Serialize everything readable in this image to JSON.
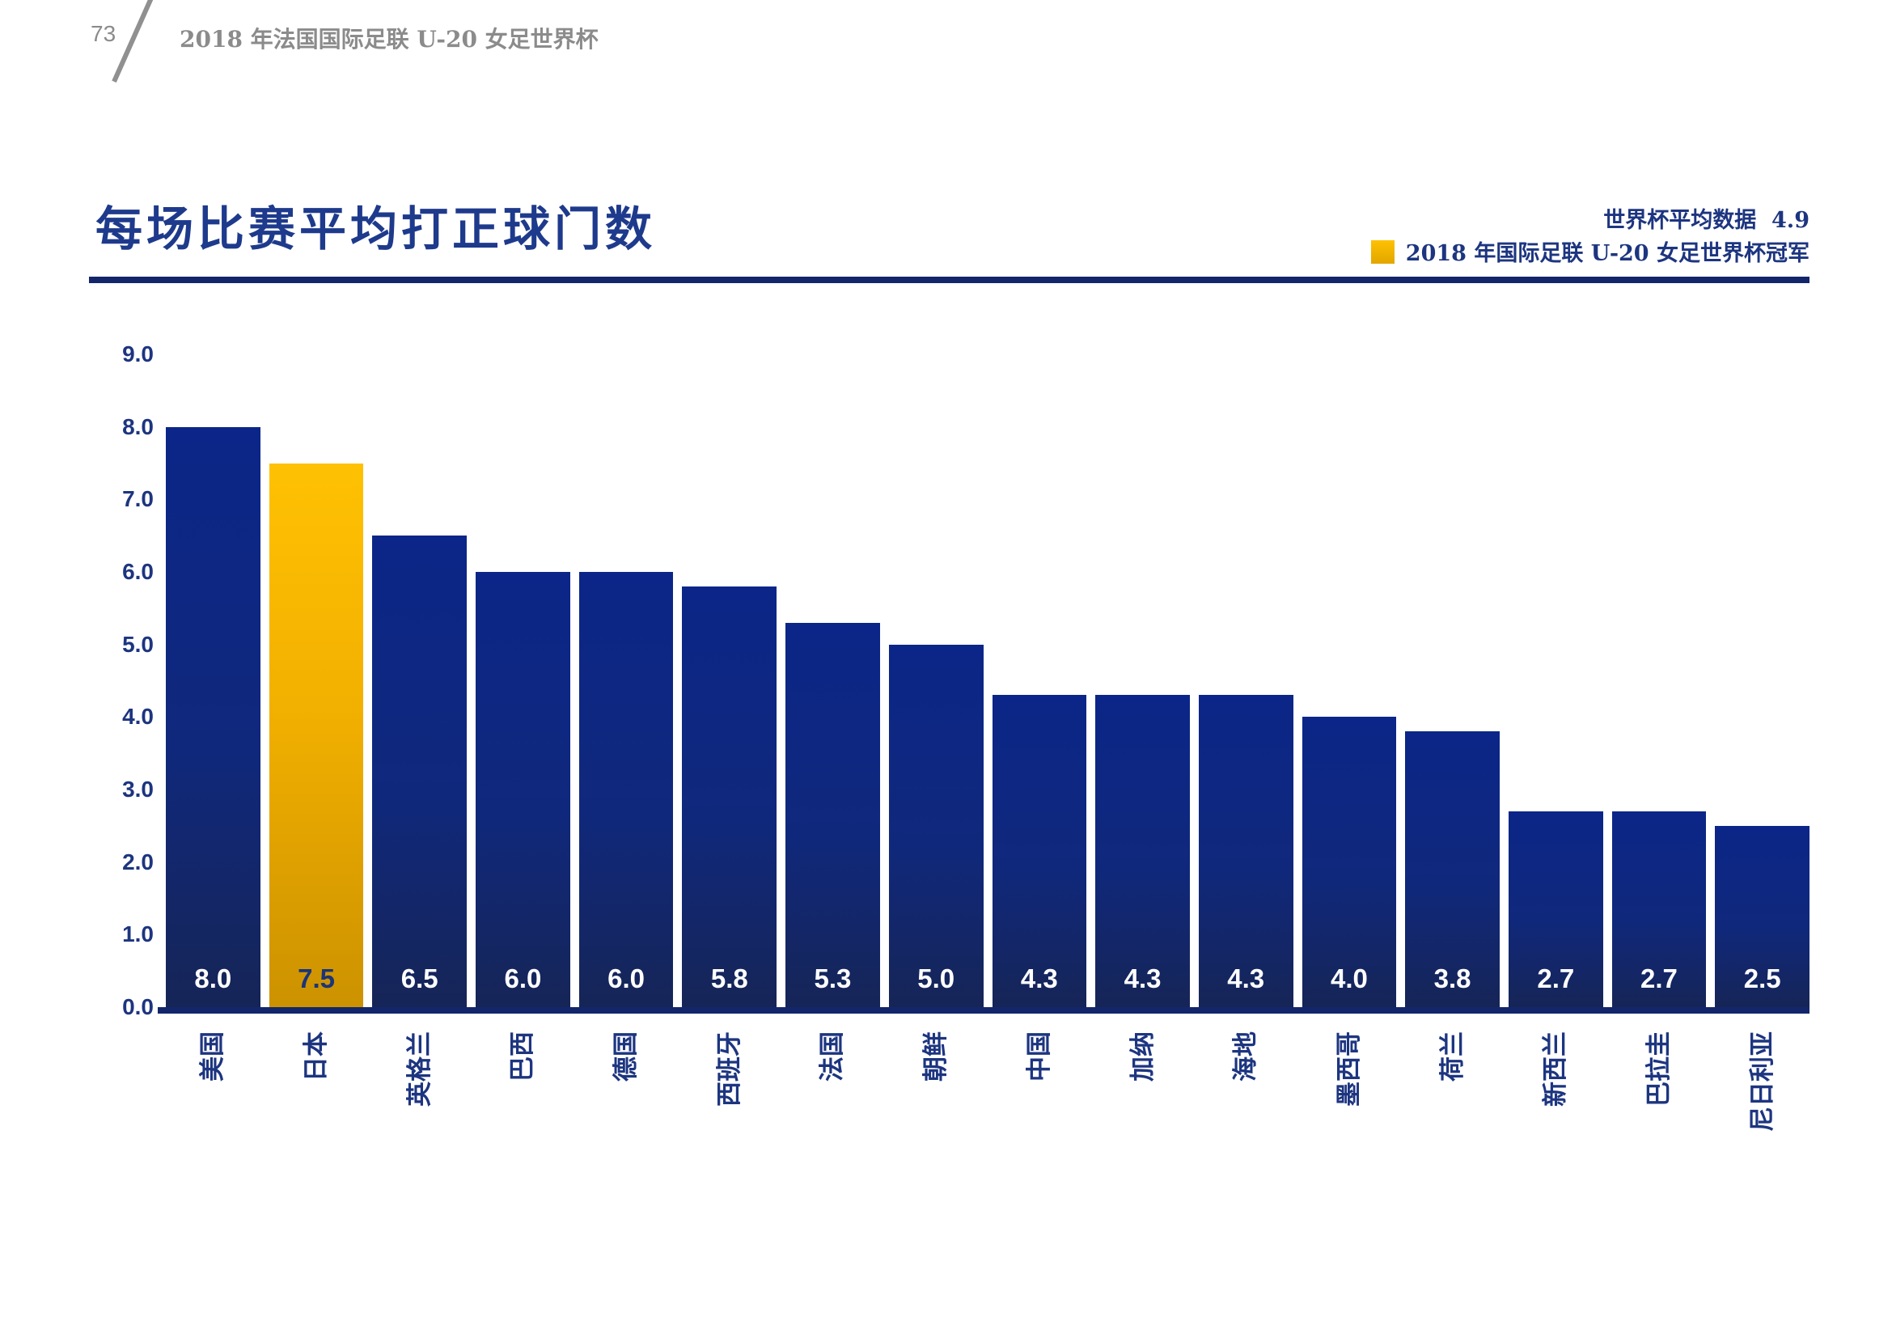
{
  "page": {
    "background": "#ffffff",
    "header": {
      "page_number": "73",
      "title": "2018 年法国国际足联 U-20 女足世界杯",
      "text_color": "#8b8b8b"
    },
    "title": "每场比赛平均打正球门数",
    "title_color": "#1e3a8c",
    "divider_color": "#13266b",
    "legend": {
      "average_label": "世界杯平均数据",
      "average_value": "4.9",
      "champion_label": "2018 年国际足联 U-20 女足世界杯冠军",
      "champion_swatch_color": "#ffc000",
      "text_color": "#1d3580"
    }
  },
  "chart_data": {
    "type": "bar",
    "title": "每场比赛平均打正球门数",
    "categories": [
      "美国",
      "日本",
      "英格兰",
      "巴西",
      "德国",
      "西班牙",
      "法国",
      "朝鲜",
      "中国",
      "加纳",
      "海地",
      "墨西哥",
      "荷兰",
      "新西兰",
      "巴拉圭",
      "尼日利亚"
    ],
    "values": [
      8.0,
      7.5,
      6.5,
      6.0,
      6.0,
      5.8,
      5.3,
      5.0,
      4.3,
      4.3,
      4.3,
      4.0,
      3.8,
      2.7,
      2.7,
      2.5
    ],
    "value_labels": [
      "8.0",
      "7.5",
      "6.5",
      "6.0",
      "6.0",
      "5.8",
      "5.3",
      "5.0",
      "4.3",
      "4.3",
      "4.3",
      "4.0",
      "3.8",
      "2.7",
      "2.7",
      "2.5"
    ],
    "highlight_index": 1,
    "highlight_meaning": "2018 年国际足联 U-20 女足世界杯冠军",
    "world_cup_average": 4.9,
    "ylim": [
      0,
      9
    ],
    "yticks": [
      "9.0",
      "8.0",
      "7.0",
      "6.0",
      "5.0",
      "4.0",
      "3.0",
      "2.0",
      "1.0",
      "0.0"
    ],
    "bar_color": "#0e2580",
    "highlight_color": "#ffc000",
    "value_label_color": "#ffffff",
    "highlight_value_label_color": "#1c3478",
    "axis_text_color": "#1d3580",
    "legend_position": "top-right",
    "grid": false
  }
}
